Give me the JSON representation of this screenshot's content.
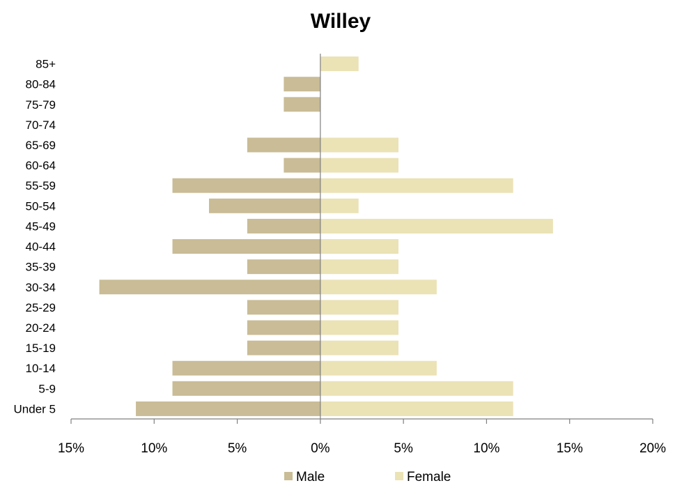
{
  "chart_data": {
    "type": "bar",
    "orientation": "horizontal",
    "title": "Willey",
    "categories": [
      "85+",
      "80-84",
      "75-79",
      "70-74",
      "65-69",
      "60-64",
      "55-59",
      "50-54",
      "45-49",
      "40-44",
      "35-39",
      "30-34",
      "25-29",
      "20-24",
      "15-19",
      "10-14",
      "5-9",
      "Under 5"
    ],
    "series": [
      {
        "name": "Male",
        "color": "#c9bc96",
        "values": [
          0,
          2.2,
          2.2,
          0,
          4.4,
          2.2,
          8.9,
          6.7,
          4.4,
          8.9,
          4.4,
          13.3,
          4.4,
          4.4,
          4.4,
          8.9,
          8.9,
          11.1
        ]
      },
      {
        "name": "Female",
        "color": "#ebe2b6",
        "values": [
          2.3,
          0,
          0,
          0,
          4.7,
          4.7,
          11.6,
          2.3,
          14.0,
          4.7,
          4.7,
          7.0,
          4.7,
          4.7,
          4.7,
          7.0,
          11.6,
          11.6
        ]
      }
    ],
    "xlim": [
      -15,
      20
    ],
    "x_ticks": [
      -15,
      -10,
      -5,
      0,
      5,
      10,
      15,
      20
    ],
    "x_tick_labels": [
      "15%",
      "10%",
      "5%",
      "0%",
      "5%",
      "10%",
      "15%",
      "20%"
    ],
    "xlabel": "",
    "ylabel": "",
    "grid": false,
    "legend_position": "bottom"
  }
}
